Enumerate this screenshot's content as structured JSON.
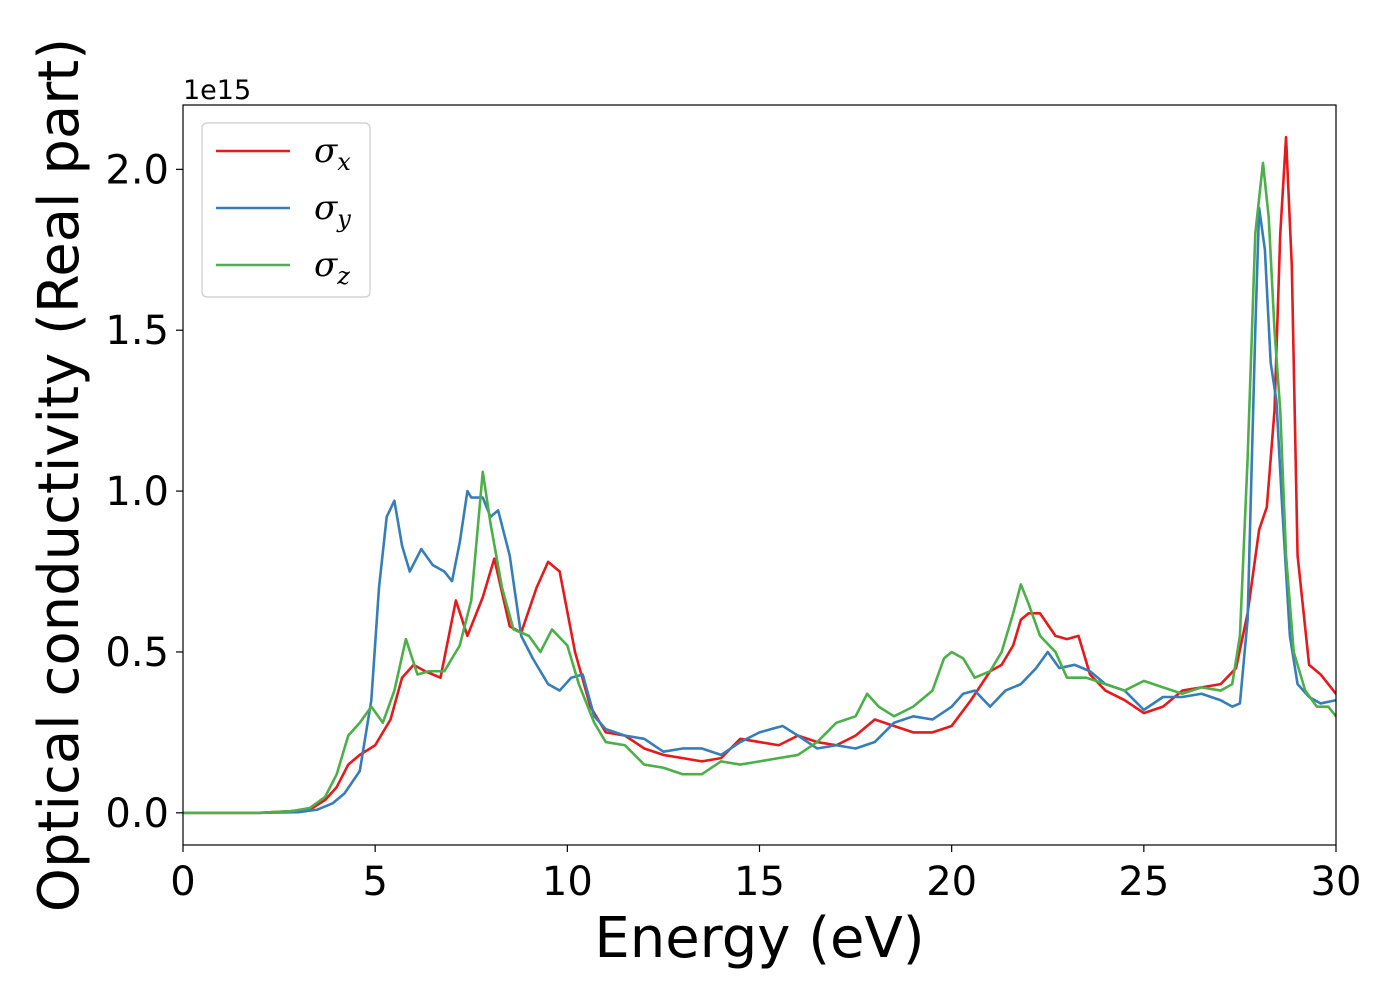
{
  "chart_data": {
    "type": "line",
    "title": "",
    "xlabel": "Energy (eV)",
    "ylabel": "Optical conductivity (Real part)",
    "y_offset_label": "1e15",
    "xlim": [
      0,
      30
    ],
    "ylim": [
      -0.1,
      2.2
    ],
    "x_ticks": [
      0,
      5,
      10,
      15,
      20,
      25,
      30
    ],
    "x_tick_labels": [
      "0",
      "5",
      "10",
      "15",
      "20",
      "25",
      "30"
    ],
    "y_ticks": [
      0.0,
      0.5,
      1.0,
      1.5,
      2.0
    ],
    "y_tick_labels": [
      "0.0",
      "0.5",
      "1.0",
      "1.5",
      "2.0"
    ],
    "grid": false,
    "legend_position": "top-left",
    "series": [
      {
        "name": "σ",
        "subscript": "x",
        "color": "#e41a1c",
        "x": [
          0,
          2,
          2.8,
          3.3,
          3.7,
          4.0,
          4.3,
          4.6,
          5.0,
          5.4,
          5.7,
          6.0,
          6.3,
          6.7,
          7.1,
          7.4,
          7.8,
          8.1,
          8.5,
          8.8,
          9.2,
          9.5,
          9.8,
          10.2,
          10.6,
          11.0,
          11.5,
          12.0,
          12.5,
          13.0,
          13.5,
          14.0,
          14.5,
          15.0,
          15.5,
          16.0,
          16.5,
          17.0,
          17.5,
          18.0,
          18.5,
          19.0,
          19.5,
          20.0,
          20.5,
          21.0,
          21.3,
          21.6,
          21.8,
          22.0,
          22.3,
          22.7,
          23.0,
          23.3,
          23.6,
          24.0,
          24.5,
          25.0,
          25.5,
          26.0,
          26.5,
          27.0,
          27.4,
          27.7,
          28.0,
          28.2,
          28.4,
          28.55,
          28.7,
          28.85,
          29.0,
          29.3,
          29.6,
          30.0
        ],
        "y": [
          0,
          0,
          0.005,
          0.01,
          0.04,
          0.08,
          0.15,
          0.18,
          0.21,
          0.29,
          0.42,
          0.46,
          0.44,
          0.42,
          0.66,
          0.55,
          0.67,
          0.79,
          0.58,
          0.56,
          0.7,
          0.78,
          0.75,
          0.5,
          0.33,
          0.25,
          0.24,
          0.2,
          0.18,
          0.17,
          0.16,
          0.17,
          0.23,
          0.22,
          0.21,
          0.24,
          0.22,
          0.21,
          0.24,
          0.29,
          0.27,
          0.25,
          0.25,
          0.27,
          0.35,
          0.44,
          0.46,
          0.52,
          0.6,
          0.62,
          0.62,
          0.55,
          0.54,
          0.55,
          0.43,
          0.38,
          0.35,
          0.31,
          0.33,
          0.38,
          0.39,
          0.4,
          0.45,
          0.62,
          0.88,
          0.95,
          1.25,
          1.8,
          2.1,
          1.7,
          0.8,
          0.46,
          0.43,
          0.37
        ]
      },
      {
        "name": "σ",
        "subscript": "y",
        "color": "#377eb8",
        "x": [
          0,
          2,
          3.0,
          3.5,
          3.9,
          4.2,
          4.6,
          4.9,
          5.1,
          5.3,
          5.5,
          5.7,
          5.9,
          6.2,
          6.5,
          6.8,
          7.0,
          7.2,
          7.4,
          7.5,
          7.8,
          8.0,
          8.2,
          8.5,
          8.8,
          9.1,
          9.5,
          9.8,
          10.1,
          10.4,
          10.7,
          11.0,
          11.5,
          12.0,
          12.5,
          13.0,
          13.5,
          14.0,
          14.5,
          15.0,
          15.3,
          15.6,
          16.0,
          16.5,
          17.0,
          17.5,
          18.0,
          18.5,
          19.0,
          19.5,
          20.0,
          20.3,
          20.6,
          21.0,
          21.4,
          21.8,
          22.2,
          22.5,
          22.8,
          23.2,
          23.6,
          24.0,
          24.5,
          25.0,
          25.5,
          26.0,
          26.5,
          27.0,
          27.3,
          27.5,
          27.7,
          27.9,
          28.0,
          28.15,
          28.3,
          28.45,
          28.6,
          28.8,
          29.0,
          29.3,
          29.6,
          30.0
        ],
        "y": [
          0,
          0,
          0.002,
          0.01,
          0.03,
          0.06,
          0.13,
          0.35,
          0.7,
          0.92,
          0.97,
          0.83,
          0.75,
          0.82,
          0.77,
          0.75,
          0.72,
          0.84,
          1.0,
          0.98,
          0.98,
          0.92,
          0.94,
          0.8,
          0.55,
          0.48,
          0.4,
          0.38,
          0.42,
          0.43,
          0.3,
          0.26,
          0.24,
          0.23,
          0.19,
          0.2,
          0.2,
          0.18,
          0.22,
          0.25,
          0.26,
          0.27,
          0.24,
          0.2,
          0.21,
          0.2,
          0.22,
          0.28,
          0.3,
          0.29,
          0.33,
          0.37,
          0.38,
          0.33,
          0.38,
          0.4,
          0.45,
          0.5,
          0.45,
          0.46,
          0.44,
          0.4,
          0.38,
          0.32,
          0.36,
          0.36,
          0.37,
          0.35,
          0.33,
          0.34,
          0.6,
          1.5,
          1.88,
          1.75,
          1.4,
          1.28,
          0.95,
          0.55,
          0.4,
          0.36,
          0.34,
          0.35
        ]
      },
      {
        "name": "σ",
        "subscript": "z",
        "color": "#4daf4a",
        "x": [
          0,
          2,
          2.8,
          3.3,
          3.7,
          4.0,
          4.3,
          4.6,
          4.9,
          5.2,
          5.5,
          5.8,
          6.1,
          6.4,
          6.8,
          7.2,
          7.5,
          7.8,
          8.0,
          8.3,
          8.6,
          9.0,
          9.3,
          9.6,
          10.0,
          10.3,
          10.7,
          11.0,
          11.5,
          12.0,
          12.5,
          13.0,
          13.5,
          14.0,
          14.5,
          15.0,
          15.5,
          16.0,
          16.5,
          17.0,
          17.5,
          17.8,
          18.1,
          18.5,
          19.0,
          19.5,
          19.8,
          20.0,
          20.3,
          20.6,
          21.0,
          21.3,
          21.6,
          21.8,
          22.0,
          22.3,
          22.7,
          23.0,
          23.5,
          24.0,
          24.5,
          25.0,
          25.5,
          26.0,
          26.5,
          27.0,
          27.3,
          27.5,
          27.7,
          27.9,
          28.1,
          28.25,
          28.4,
          28.55,
          28.7,
          28.9,
          29.2,
          29.5,
          29.8,
          30.0
        ],
        "y": [
          0,
          0,
          0.005,
          0.015,
          0.05,
          0.12,
          0.24,
          0.28,
          0.33,
          0.28,
          0.38,
          0.54,
          0.43,
          0.44,
          0.44,
          0.52,
          0.66,
          1.06,
          0.9,
          0.7,
          0.57,
          0.55,
          0.5,
          0.57,
          0.52,
          0.4,
          0.28,
          0.22,
          0.21,
          0.15,
          0.14,
          0.12,
          0.12,
          0.16,
          0.15,
          0.16,
          0.17,
          0.18,
          0.22,
          0.28,
          0.3,
          0.37,
          0.33,
          0.3,
          0.33,
          0.38,
          0.48,
          0.5,
          0.48,
          0.42,
          0.44,
          0.5,
          0.62,
          0.71,
          0.65,
          0.55,
          0.5,
          0.42,
          0.42,
          0.4,
          0.38,
          0.41,
          0.39,
          0.37,
          0.39,
          0.38,
          0.4,
          0.55,
          1.1,
          1.8,
          2.02,
          1.85,
          1.5,
          1.25,
          0.8,
          0.5,
          0.38,
          0.33,
          0.33,
          0.3
        ]
      }
    ]
  }
}
